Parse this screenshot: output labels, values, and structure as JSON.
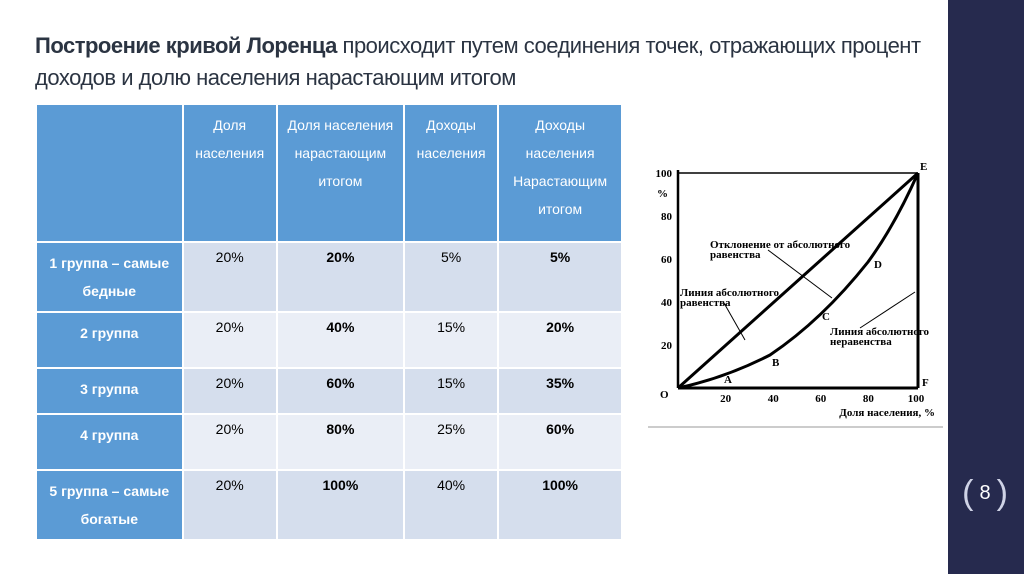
{
  "title": {
    "bold": "Построение кривой Лоренца",
    "rest": "происходит путем соединения точек, отражающих процент доходов и долю населения нарастающим итогом"
  },
  "table": {
    "header": [
      "Доля населения",
      "Доля населения нарастающим итогом",
      "Доходы населения",
      "Доходы населения Нарастающим итогом"
    ],
    "rows": [
      [
        "1 группа – самые бедные",
        "20%",
        "20%",
        "5%",
        "5%"
      ],
      [
        "2 группа",
        "20%",
        "40%",
        "15%",
        "20%"
      ],
      [
        "3 группа",
        "20%",
        "60%",
        "15%",
        "35%"
      ],
      [
        "4 группа",
        "20%",
        "80%",
        "25%",
        "60%"
      ],
      [
        "5 группа – самые богатые",
        "20%",
        "100%",
        "40%",
        "100%"
      ]
    ]
  },
  "figure": {
    "y_ticks": [
      20,
      40,
      60,
      80,
      100
    ],
    "x_ticks": [
      20,
      40,
      60,
      80,
      100
    ],
    "y_unit": "%",
    "x_label": "Доля населения, %",
    "points": {
      "O": "O",
      "A": "A",
      "B": "B",
      "C": "C",
      "D": "D",
      "E": "E",
      "F": "F"
    },
    "notes": [
      "Отклонение от абсолютного равенства",
      "Линия абсолютного равенства",
      "Линия абсолютного неравенства"
    ]
  },
  "page_number": 8
}
